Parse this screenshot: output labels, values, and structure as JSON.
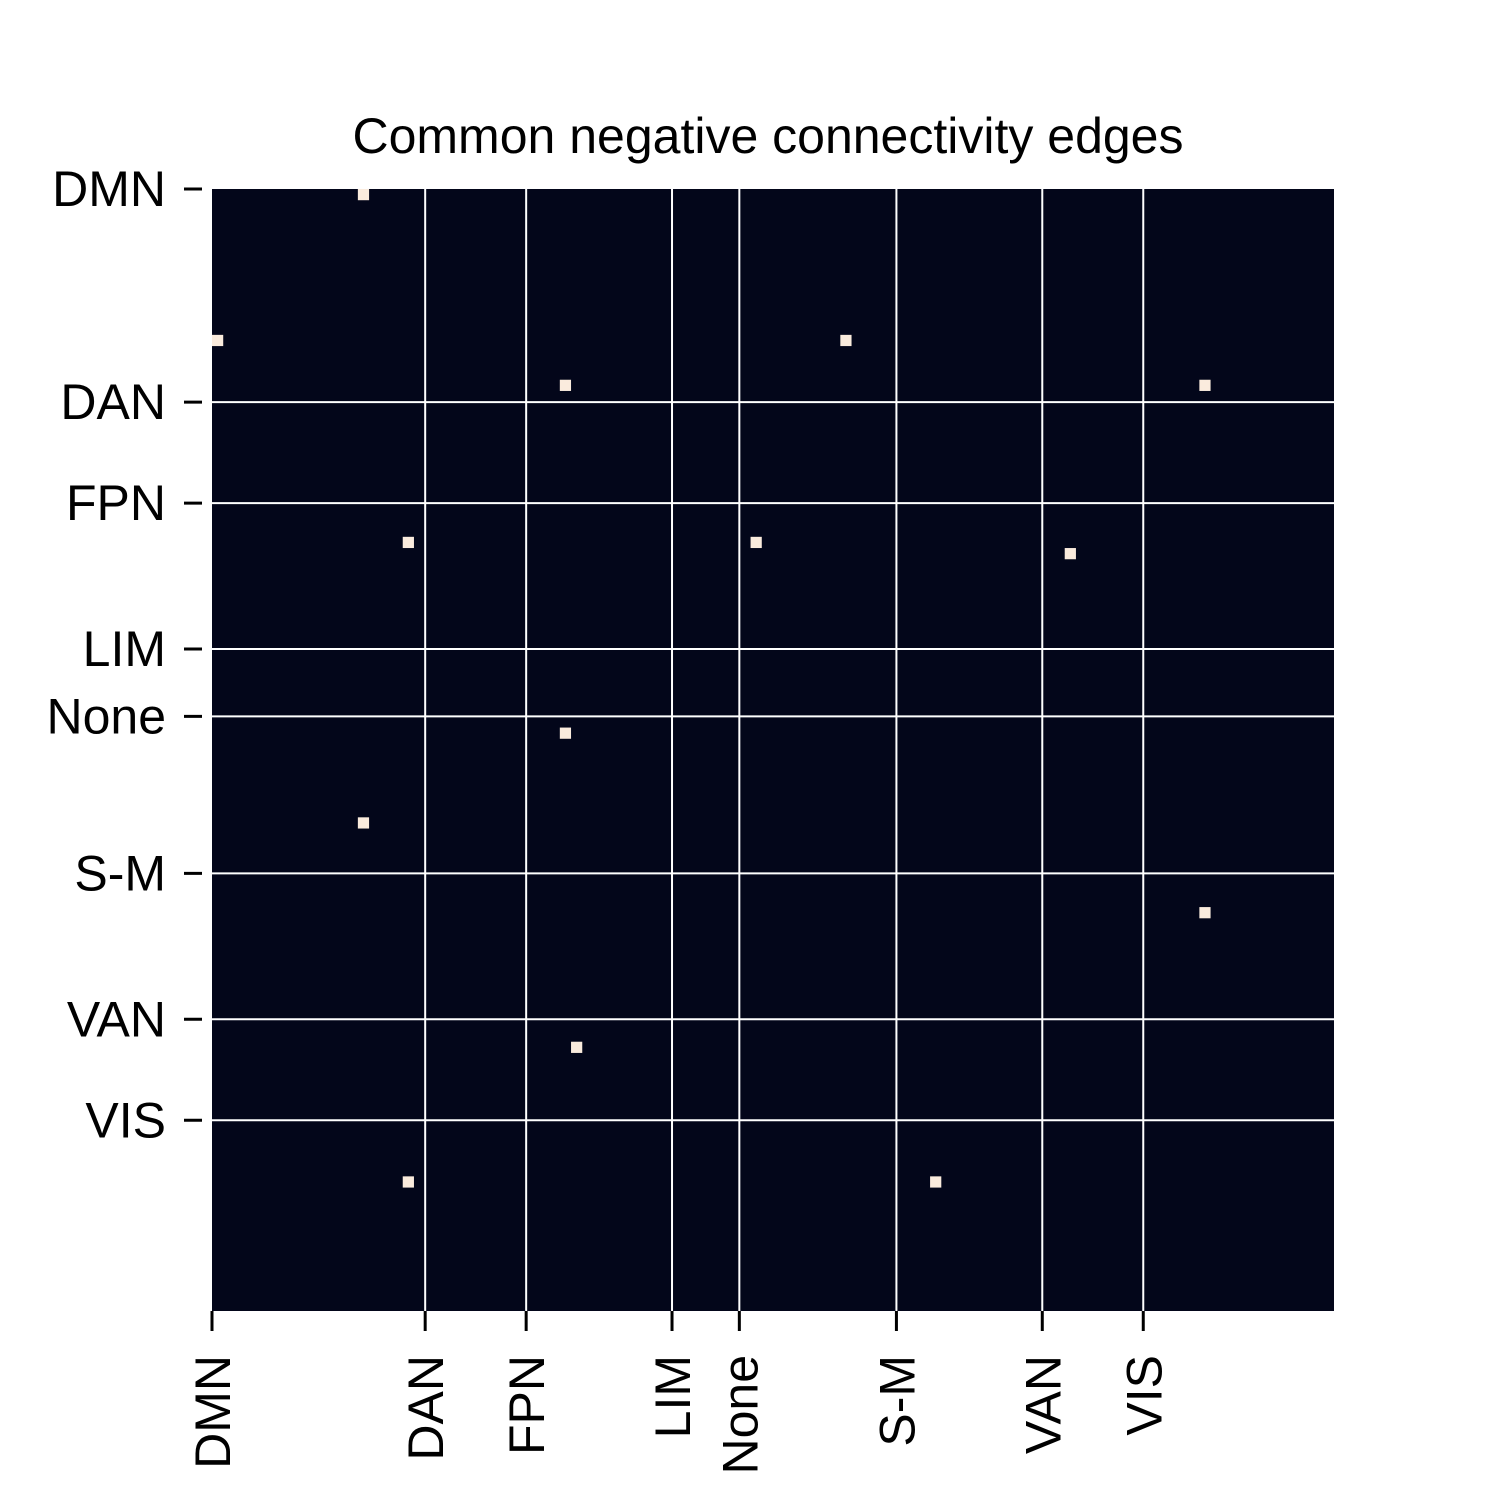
{
  "chart_data": {
    "type": "heatmap",
    "title": "Common negative connectivity edges",
    "xlabel": "",
    "ylabel": "",
    "n_nodes": 100,
    "groups": [
      {
        "name": "DMN",
        "start": 0
      },
      {
        "name": "DAN",
        "start": 19
      },
      {
        "name": "FPN",
        "start": 28
      },
      {
        "name": "LIM",
        "start": 41
      },
      {
        "name": "None",
        "start": 47
      },
      {
        "name": "S-M",
        "start": 61
      },
      {
        "name": "VAN",
        "start": 74
      },
      {
        "name": "VIS",
        "start": 83
      }
    ],
    "edges": [
      {
        "row": 0,
        "col": 13
      },
      {
        "row": 13,
        "col": 0
      },
      {
        "row": 13,
        "col": 56
      },
      {
        "row": 17,
        "col": 31
      },
      {
        "row": 17,
        "col": 88
      },
      {
        "row": 31,
        "col": 17
      },
      {
        "row": 31,
        "col": 48
      },
      {
        "row": 32,
        "col": 76
      },
      {
        "row": 48,
        "col": 31
      },
      {
        "row": 56,
        "col": 13
      },
      {
        "row": 64,
        "col": 88
      },
      {
        "row": 76,
        "col": 32
      },
      {
        "row": 88,
        "col": 17
      },
      {
        "row": 88,
        "col": 64
      }
    ],
    "value_range": [
      0,
      1
    ],
    "colors": {
      "background": "#03061a",
      "edge": "#faebdd",
      "gridline": "#ffffff"
    },
    "grid": true,
    "legend": "none"
  }
}
